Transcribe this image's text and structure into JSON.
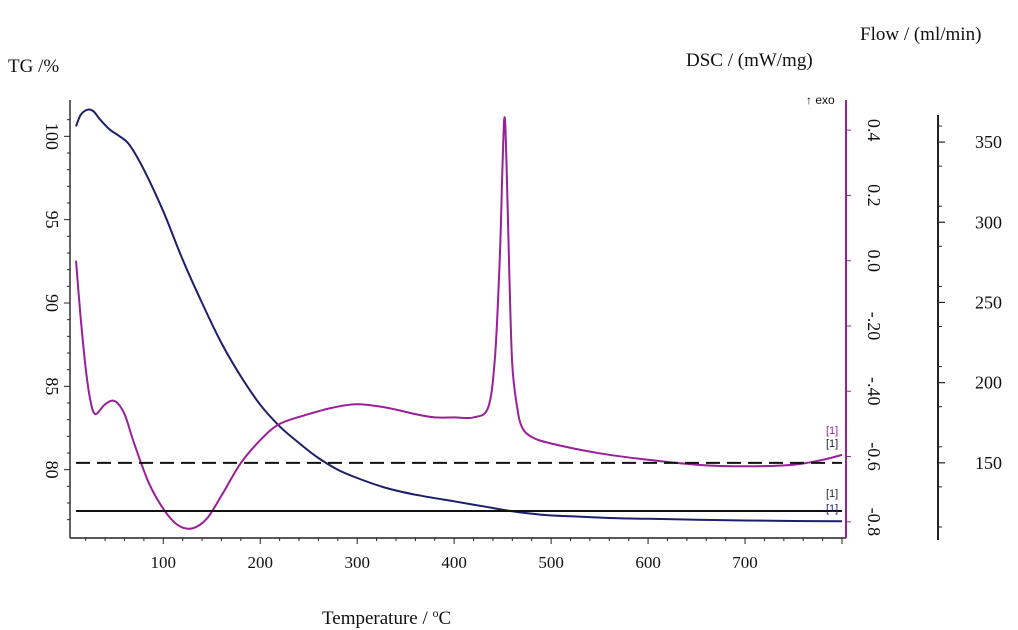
{
  "chart_data": {
    "type": "line",
    "xlabel": "Temperature / °C",
    "xlabel_main": "Temperature / ",
    "xlabel_unit_sup": "o",
    "xlabel_unit_tail": "C",
    "x_ticks": [
      100,
      200,
      300,
      400,
      500,
      600,
      700
    ],
    "xlim": [
      10,
      800
    ],
    "axes": {
      "tg": {
        "label": "TG /%",
        "ticks": [
          100,
          95,
          90,
          85,
          80
        ],
        "range": [
          76.5,
          101.7
        ]
      },
      "dsc": {
        "label": "DSC / (mW/mg)",
        "ticks": [
          "0.4",
          "0.2",
          "0.0",
          "-.20",
          "-.40",
          "-0.6",
          "-0.8"
        ],
        "tick_values": [
          0.4,
          0.2,
          0.0,
          -0.2,
          -0.4,
          -0.6,
          -0.8
        ],
        "range": [
          -0.825,
          0.48
        ]
      },
      "flow": {
        "label": "Flow / (ml/min)",
        "ticks": [
          350,
          300,
          250,
          200,
          150
        ],
        "range": [
          105,
          365
        ]
      }
    },
    "exo_label": "↑ exo",
    "curve_labels": [
      "[1]",
      "[1]",
      "[1]",
      "[1]"
    ],
    "colors": {
      "tg": "#1c1f6b",
      "dsc": "#9a1f9b",
      "flow": "#111111"
    },
    "series": [
      {
        "axis": "tg",
        "x": [
          10,
          15,
          22,
          28,
          35,
          45,
          55,
          65,
          80,
          100,
          120,
          140,
          160,
          180,
          200,
          220,
          240,
          260,
          280,
          300,
          330,
          360,
          400,
          430,
          460,
          490,
          520,
          560,
          600,
          650,
          700,
          750,
          800
        ],
        "y": [
          100.6,
          101.3,
          101.6,
          101.5,
          101.0,
          100.4,
          100.0,
          99.5,
          98.0,
          95.5,
          92.6,
          90.0,
          87.6,
          85.6,
          83.9,
          82.6,
          81.6,
          80.7,
          80.0,
          79.5,
          78.9,
          78.5,
          78.1,
          77.8,
          77.5,
          77.3,
          77.2,
          77.1,
          77.05,
          77.0,
          76.95,
          76.92,
          76.9
        ]
      },
      {
        "axis": "dsc",
        "x": [
          10,
          15,
          20,
          25,
          30,
          40,
          50,
          60,
          70,
          85,
          100,
          115,
          130,
          145,
          160,
          180,
          200,
          220,
          250,
          275,
          300,
          330,
          360,
          380,
          400,
          420,
          435,
          442,
          447,
          450,
          452,
          454,
          457,
          460,
          465,
          470,
          480,
          500,
          550,
          600,
          650,
          700,
          750,
          780,
          800
        ],
        "y": [
          0.0,
          -0.18,
          -0.33,
          -0.43,
          -0.47,
          -0.44,
          -0.43,
          -0.47,
          -0.56,
          -0.68,
          -0.76,
          -0.81,
          -0.82,
          -0.79,
          -0.72,
          -0.62,
          -0.55,
          -0.5,
          -0.47,
          -0.45,
          -0.44,
          -0.45,
          -0.47,
          -0.48,
          -0.48,
          -0.48,
          -0.45,
          -0.3,
          0.0,
          0.3,
          0.44,
          0.3,
          -0.05,
          -0.32,
          -0.45,
          -0.51,
          -0.54,
          -0.56,
          -0.59,
          -0.61,
          -0.625,
          -0.63,
          -0.625,
          -0.61,
          -0.595
        ]
      },
      {
        "axis": "flow",
        "style": "dashed",
        "x": [
          10,
          800
        ],
        "y": [
          150,
          150
        ]
      },
      {
        "axis": "flow",
        "style": "solid",
        "x": [
          10,
          800
        ],
        "y": [
          120,
          120
        ]
      }
    ]
  }
}
